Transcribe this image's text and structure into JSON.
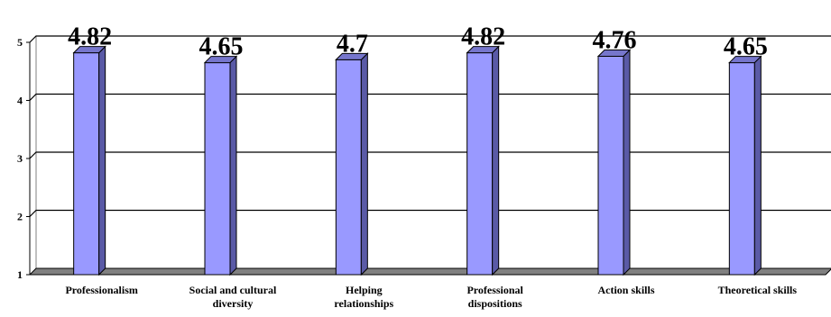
{
  "chart_data": {
    "type": "bar",
    "title": "",
    "xlabel": "",
    "ylabel": "",
    "categories": [
      [
        "Professionalism"
      ],
      [
        "Social and cultural",
        "diversity"
      ],
      [
        "Helping",
        "relationships"
      ],
      [
        "Professional",
        "dispositions"
      ],
      [
        "Action skills"
      ],
      [
        "Theoretical skills"
      ]
    ],
    "values": [
      4.82,
      4.65,
      4.7,
      4.82,
      4.76,
      4.65
    ],
    "data_labels": [
      "4.82",
      "4.65",
      "4.7",
      "4.82",
      "4.76",
      "4.65"
    ],
    "ylim": [
      1,
      5
    ],
    "yticks": [
      "1",
      "2",
      "3",
      "4",
      "5"
    ],
    "grid": true,
    "legend": "none",
    "style": "3d-column",
    "colors": {
      "bar_front": "#9999ff",
      "bar_side": "#5a5aa6",
      "bar_top": "#7676cc",
      "floor": "#808080",
      "gridline": "#000000"
    }
  }
}
